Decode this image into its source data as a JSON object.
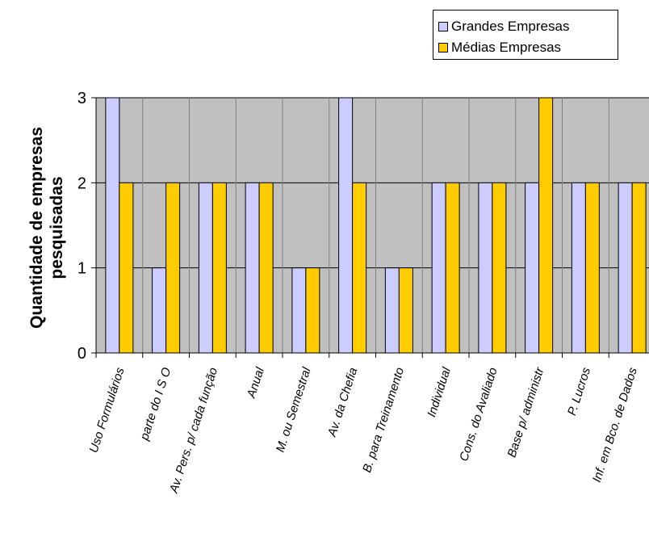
{
  "chart_data": {
    "type": "bar",
    "categories": [
      "Uso Formulários",
      "parte do  I S O",
      "Av. Pers. p/ cada função",
      "Anual",
      "M. ou Semestral",
      "Av. da Chefia",
      "B. para Treinamento",
      "Individual",
      "Cons. do Avaliado",
      "Base p/ administr",
      "P. Lucros",
      "Inf. em Bco. de Dados"
    ],
    "series": [
      {
        "name": "Grandes Empresas",
        "color": "#ccccff",
        "values": [
          3,
          1,
          2,
          2,
          1,
          3,
          1,
          2,
          2,
          2,
          2,
          2
        ]
      },
      {
        "name": "Médias Empresas",
        "color": "#ffcc00",
        "values": [
          2,
          2,
          2,
          2,
          1,
          2,
          1,
          2,
          2,
          3,
          2,
          2
        ]
      }
    ],
    "ylabel_lines": [
      "Quantidade de empresas",
      "pesquisadas"
    ],
    "ylim": [
      0,
      3
    ],
    "yticks": [
      "0",
      "1",
      "2",
      "3"
    ],
    "plot_background": "#c0c0c0",
    "grid": true,
    "legend": "top-right"
  }
}
